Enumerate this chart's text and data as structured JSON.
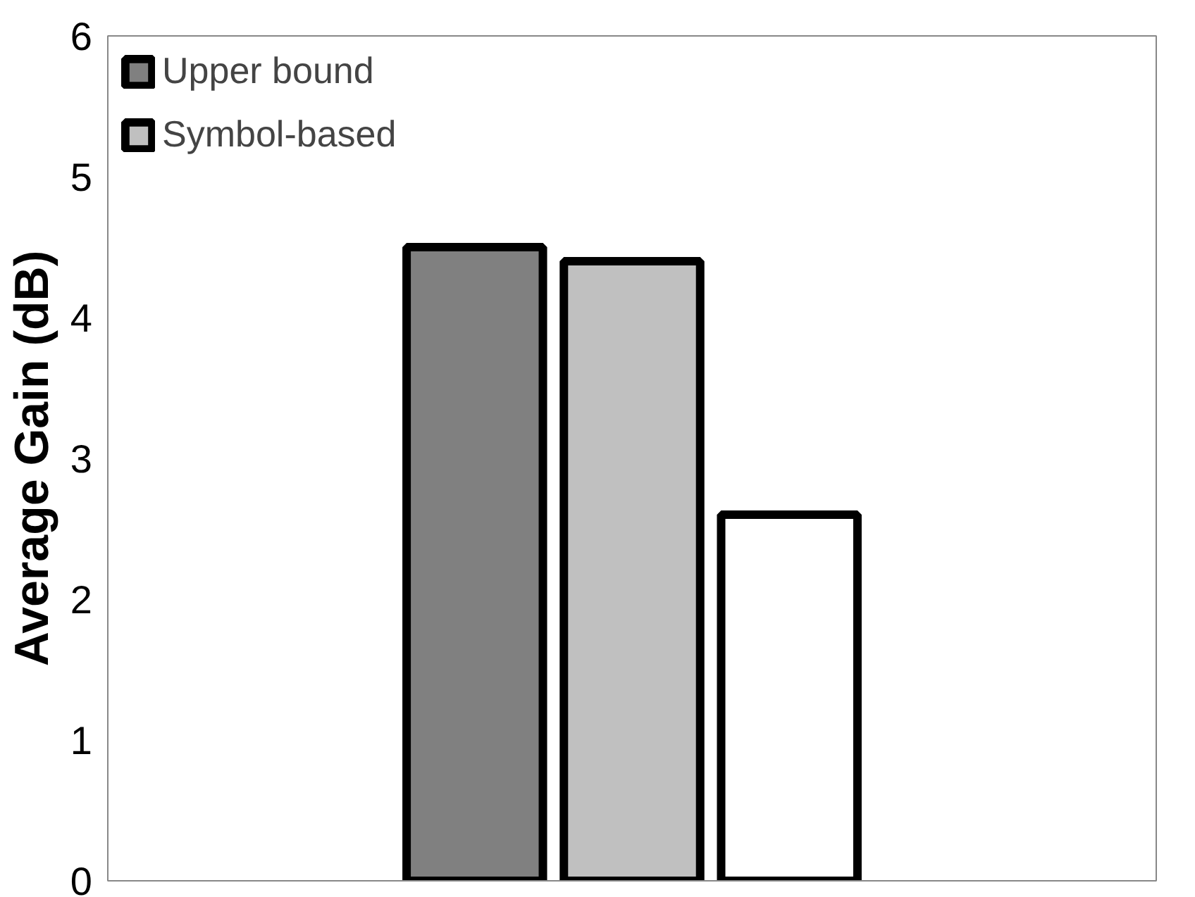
{
  "chart_data": {
    "type": "bar",
    "ylabel": "Average Gain (dB)",
    "categories": [
      null
    ],
    "series": [
      {
        "name": "Upper bound",
        "color": "#808080",
        "values": [
          4.5
        ]
      },
      {
        "name": "Symbol-based",
        "color": "#c0c0c0",
        "values": [
          4.4
        ]
      },
      {
        "color": "#ffffff",
        "values": [
          2.6
        ]
      }
    ],
    "ylim": [
      0,
      6
    ],
    "yticks": [
      0,
      1,
      2,
      3,
      4,
      5,
      6
    ],
    "grid": false,
    "legend": "top left"
  }
}
